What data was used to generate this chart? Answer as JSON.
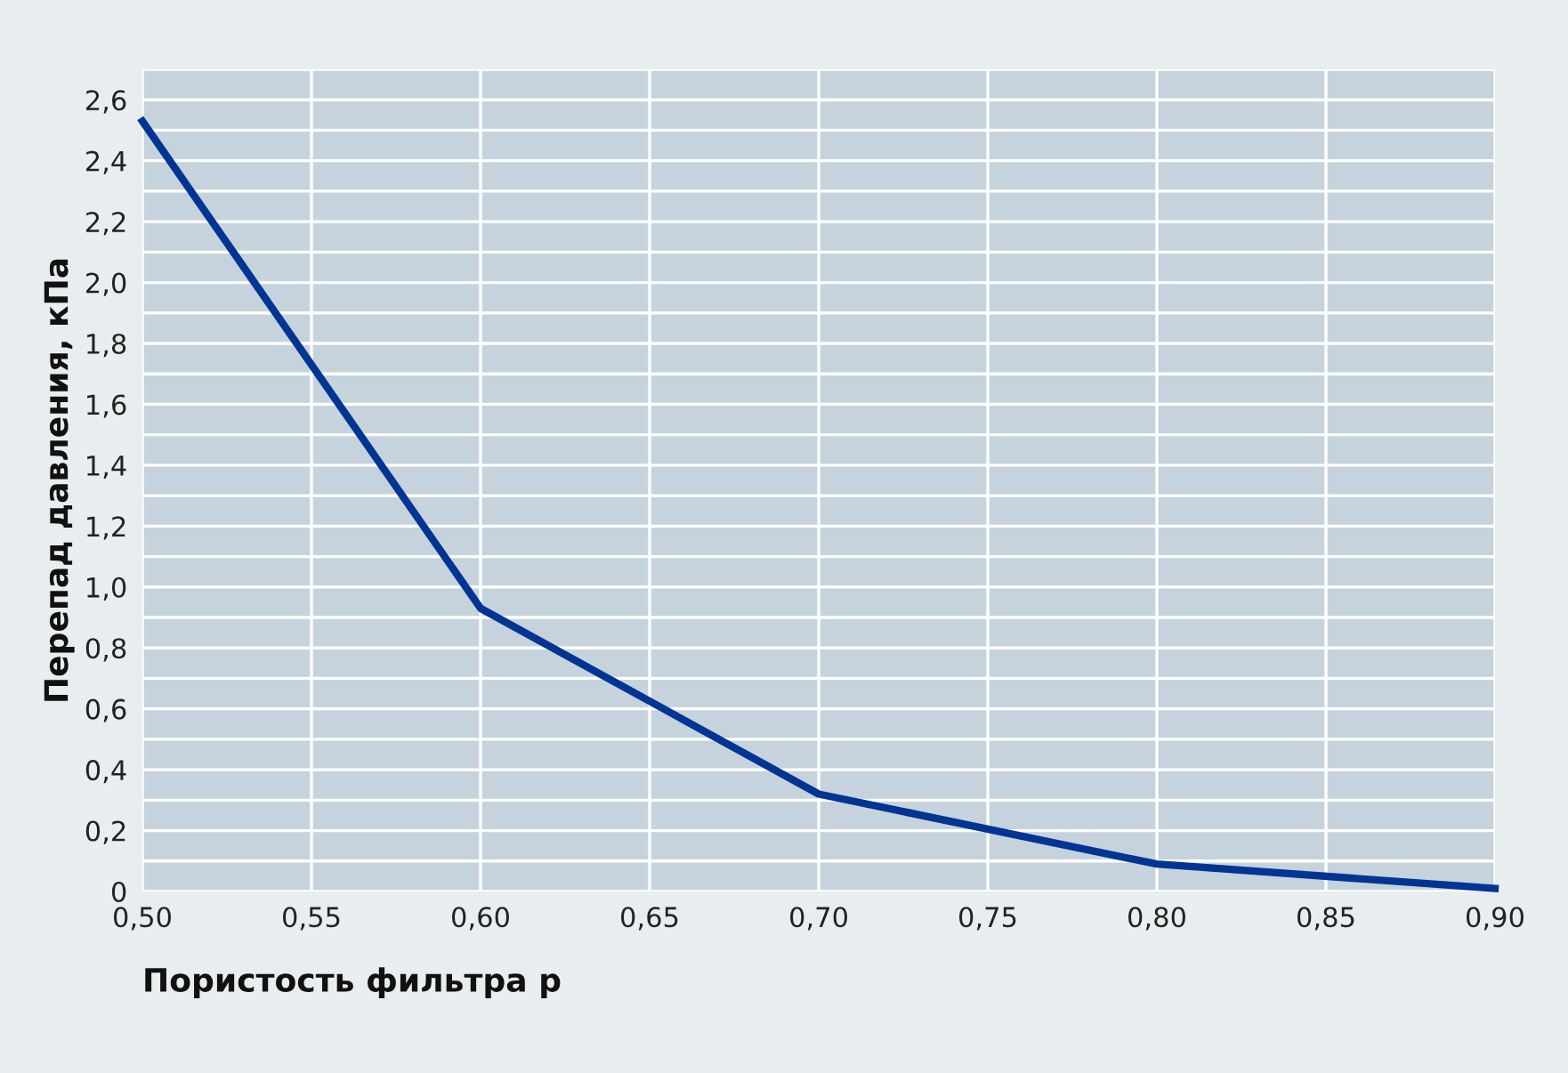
{
  "chart_data": {
    "type": "line",
    "xlabel": "Пористость фильтра p",
    "ylabel": "Перепад давления, кПа",
    "x": [
      0.5,
      0.6,
      0.7,
      0.8,
      0.9
    ],
    "series": [
      {
        "color": "#003594",
        "values": [
          2.53,
          0.93,
          0.32,
          0.09,
          0.01
        ]
      }
    ],
    "xlim": [
      0.5,
      0.9
    ],
    "xticks": [
      {
        "value": 0.5,
        "label": "0,50"
      },
      {
        "value": 0.55,
        "label": "0,55"
      },
      {
        "value": 0.6,
        "label": "0,60"
      },
      {
        "value": 0.65,
        "label": "0,65"
      },
      {
        "value": 0.7,
        "label": "0,70"
      },
      {
        "value": 0.75,
        "label": "0,75"
      },
      {
        "value": 0.8,
        "label": "0,80"
      },
      {
        "value": 0.85,
        "label": "0,85"
      },
      {
        "value": 0.9,
        "label": "0,90"
      }
    ],
    "ylim": [
      0,
      2.7
    ],
    "yticks": [
      0,
      {
        "value": 0.1,
        "label": null
      },
      {
        "value": 0.2,
        "label": "0,2"
      },
      {
        "value": 0.3,
        "label": null
      },
      {
        "value": 0.4,
        "label": "0,4"
      },
      {
        "value": 0.5,
        "label": null
      },
      {
        "value": 0.6,
        "label": "0,6"
      },
      {
        "value": 0.7,
        "label": null
      },
      {
        "value": 0.8,
        "label": "0,8"
      },
      {
        "value": 0.9,
        "label": null
      },
      {
        "value": 1.0,
        "label": "1,0"
      },
      {
        "value": 1.1,
        "label": null
      },
      {
        "value": 1.2,
        "label": "1,2"
      },
      {
        "value": 1.3,
        "label": null
      },
      {
        "value": 1.4,
        "label": "1,4"
      },
      {
        "value": 1.5,
        "label": null
      },
      {
        "value": 1.6,
        "label": "1,6"
      },
      {
        "value": 1.7,
        "label": null
      },
      {
        "value": 1.8,
        "label": "1,8"
      },
      {
        "value": 1.9,
        "label": null
      },
      {
        "value": 2.0,
        "label": "2,0"
      },
      {
        "value": 2.1,
        "label": null
      },
      {
        "value": 2.2,
        "label": "2,2"
      },
      {
        "value": 2.3,
        "label": null
      },
      {
        "value": 2.4,
        "label": "2,4"
      },
      {
        "value": 2.5,
        "label": null
      },
      {
        "value": 2.6,
        "label": "2,6"
      },
      {
        "value": 2.7,
        "label": null
      }
    ],
    "grid": true,
    "marker": "none",
    "line_style": "solid"
  }
}
